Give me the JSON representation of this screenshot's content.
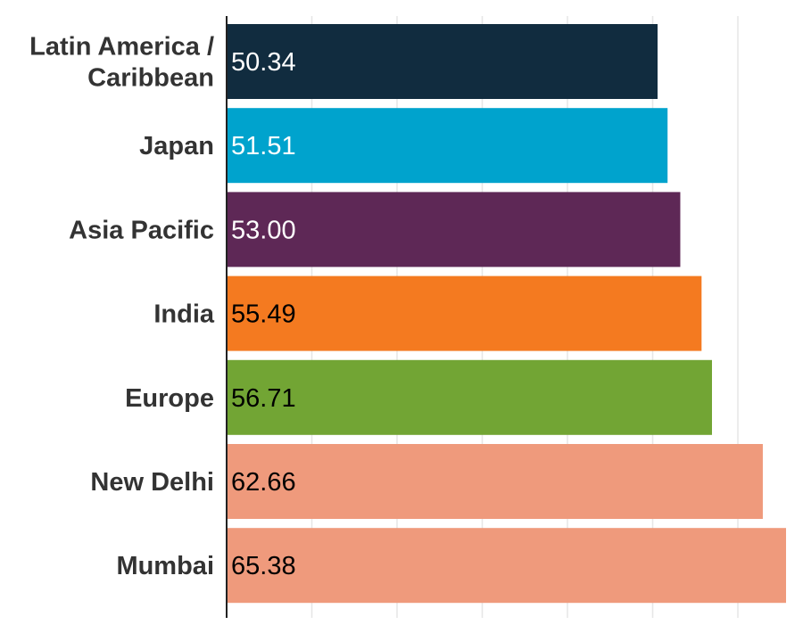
{
  "chart_data": {
    "type": "bar",
    "orientation": "horizontal",
    "title": "",
    "xlabel": "",
    "ylabel": "",
    "xlim": [
      0,
      65.38
    ],
    "grid": true,
    "legend": "none",
    "categories": [
      [
        "Latin America /",
        "Caribbean"
      ],
      [
        "Japan"
      ],
      [
        "Asia Pacific"
      ],
      [
        "India"
      ],
      [
        "Europe"
      ],
      [
        "New Delhi"
      ],
      [
        "Mumbai"
      ]
    ],
    "values": [
      50.34,
      51.51,
      53.0,
      55.49,
      56.71,
      62.66,
      65.38
    ],
    "value_labels": [
      "50.34",
      "51.51",
      "53.00",
      "55.49",
      "56.71",
      "62.66",
      "65.38"
    ],
    "colors": [
      "#112c3f",
      "#00a3cd",
      "#5e2856",
      "#f47a20",
      "#72a534",
      "#ef9a7c",
      "#ef9a7c"
    ],
    "value_label_colors": [
      "#ffffff",
      "#ffffff",
      "#ffffff",
      "#000000",
      "#000000",
      "#000000",
      "#000000"
    ]
  }
}
